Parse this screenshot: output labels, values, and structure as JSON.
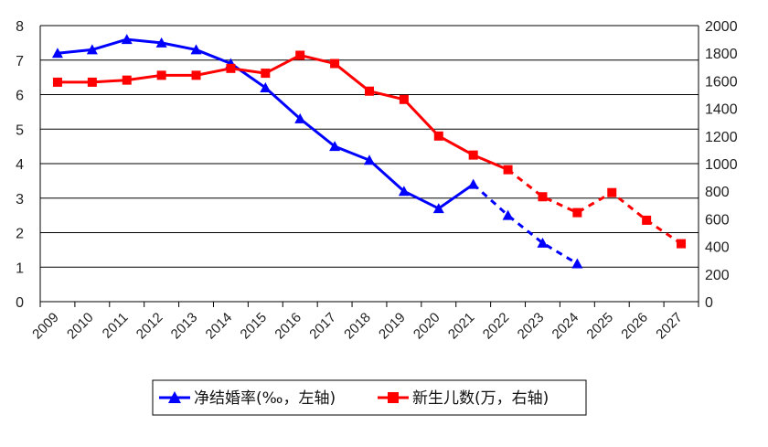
{
  "chart_data": {
    "type": "line",
    "categories": [
      "2009",
      "2010",
      "2011",
      "2012",
      "2013",
      "2014",
      "2015",
      "2016",
      "2017",
      "2018",
      "2019",
      "2020",
      "2021",
      "2022",
      "2023",
      "2024",
      "2025",
      "2026",
      "2027"
    ],
    "y_left": {
      "min": 0,
      "max": 8,
      "step": 1,
      "ticks": [
        "0",
        "1",
        "2",
        "3",
        "4",
        "5",
        "6",
        "7",
        "8"
      ]
    },
    "y_right": {
      "min": 0,
      "max": 2000,
      "step": 200,
      "ticks": [
        "0",
        "200",
        "400",
        "600",
        "800",
        "1000",
        "1200",
        "1400",
        "1600",
        "1800",
        "2000"
      ]
    },
    "grid": true,
    "legend_position": "bottom",
    "series": [
      {
        "name": "净结婚率(‰，左轴)",
        "axis": "left",
        "color": "#0000ff",
        "marker": "triangle",
        "points": [
          {
            "x": "2009",
            "y": 7.2
          },
          {
            "x": "2010",
            "y": 7.3
          },
          {
            "x": "2011",
            "y": 7.6
          },
          {
            "x": "2012",
            "y": 7.5
          },
          {
            "x": "2013",
            "y": 7.3
          },
          {
            "x": "2014",
            "y": 6.9
          },
          {
            "x": "2015",
            "y": 6.2
          },
          {
            "x": "2016",
            "y": 5.3
          },
          {
            "x": "2017",
            "y": 4.5
          },
          {
            "x": "2018",
            "y": 4.1
          },
          {
            "x": "2019",
            "y": 3.2
          },
          {
            "x": "2020",
            "y": 2.7
          },
          {
            "x": "2021",
            "y": 3.4
          },
          {
            "x": "2022",
            "y": 2.5,
            "projected": true
          },
          {
            "x": "2023",
            "y": 1.7,
            "projected": true
          },
          {
            "x": "2024",
            "y": 1.1,
            "projected": true
          }
        ]
      },
      {
        "name": "新生儿数(万，右轴)",
        "axis": "right",
        "color": "#ff0000",
        "marker": "square",
        "points": [
          {
            "x": "2009",
            "y": 1590
          },
          {
            "x": "2010",
            "y": 1590
          },
          {
            "x": "2011",
            "y": 1605
          },
          {
            "x": "2012",
            "y": 1640
          },
          {
            "x": "2013",
            "y": 1640
          },
          {
            "x": "2014",
            "y": 1690
          },
          {
            "x": "2015",
            "y": 1655
          },
          {
            "x": "2016",
            "y": 1785
          },
          {
            "x": "2017",
            "y": 1725
          },
          {
            "x": "2018",
            "y": 1525
          },
          {
            "x": "2019",
            "y": 1465
          },
          {
            "x": "2020",
            "y": 1200
          },
          {
            "x": "2021",
            "y": 1062
          },
          {
            "x": "2022",
            "y": 956
          },
          {
            "x": "2023",
            "y": 760,
            "projected": true
          },
          {
            "x": "2024",
            "y": 645,
            "projected": true
          },
          {
            "x": "2025",
            "y": 790,
            "projected": true
          },
          {
            "x": "2026",
            "y": 590,
            "projected": true
          },
          {
            "x": "2027",
            "y": 420,
            "projected": true
          }
        ]
      }
    ]
  }
}
